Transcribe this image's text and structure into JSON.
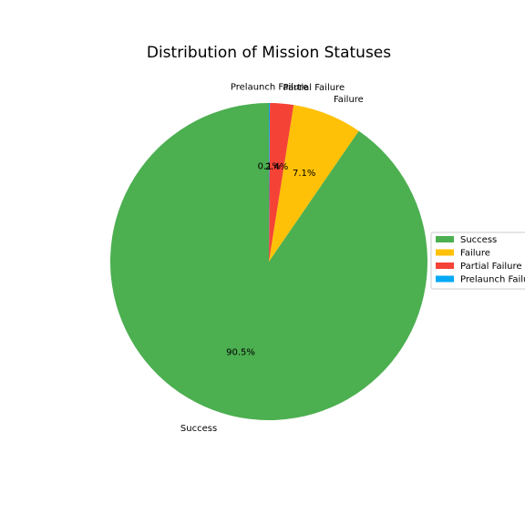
{
  "chart_data": {
    "type": "pie",
    "title": "Distribution of Mission Statuses",
    "slices": [
      {
        "label": "Success",
        "value": 90.5,
        "pct_label": "90.5%",
        "color": "#4caf50"
      },
      {
        "label": "Failure",
        "value": 7.1,
        "pct_label": "7.1%",
        "color": "#ffc107"
      },
      {
        "label": "Partial Failure",
        "value": 2.4,
        "pct_label": "2.4%",
        "color": "#f44336"
      },
      {
        "label": "Prelaunch Failure",
        "value": 0.1,
        "pct_label": "0.1%",
        "color": "#03a9f4"
      }
    ],
    "start_angle": "top",
    "direction": "counterclockwise",
    "legend": {
      "placement": "right",
      "entries": [
        "Success",
        "Failure",
        "Partial Failure",
        "Prelaunch Failure"
      ]
    }
  }
}
